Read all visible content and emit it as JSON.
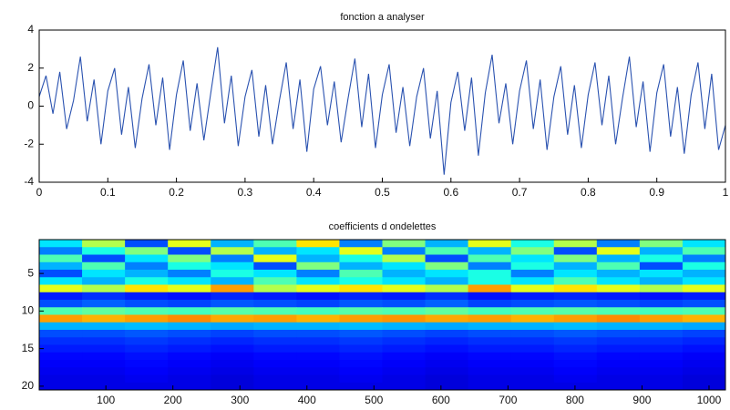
{
  "chart_data": [
    {
      "type": "line",
      "title": "fonction a analyser",
      "color": "#2a52b0",
      "x": [
        0,
        0.01,
        0.02,
        0.03,
        0.04,
        0.05,
        0.06,
        0.07,
        0.08,
        0.09,
        0.1,
        0.11,
        0.12,
        0.13,
        0.14,
        0.15,
        0.16,
        0.17,
        0.18,
        0.19,
        0.2,
        0.21,
        0.22,
        0.23,
        0.24,
        0.25,
        0.26,
        0.27,
        0.28,
        0.29,
        0.3,
        0.31,
        0.32,
        0.33,
        0.34,
        0.35,
        0.36,
        0.37,
        0.38,
        0.39,
        0.4,
        0.41,
        0.42,
        0.43,
        0.44,
        0.45,
        0.46,
        0.47,
        0.48,
        0.49,
        0.5,
        0.51,
        0.52,
        0.53,
        0.54,
        0.55,
        0.56,
        0.57,
        0.58,
        0.59,
        0.6,
        0.61,
        0.62,
        0.63,
        0.64,
        0.65,
        0.66,
        0.67,
        0.68,
        0.69,
        0.7,
        0.71,
        0.72,
        0.73,
        0.74,
        0.75,
        0.76,
        0.77,
        0.78,
        0.79,
        0.8,
        0.81,
        0.82,
        0.83,
        0.84,
        0.85,
        0.86,
        0.87,
        0.88,
        0.89,
        0.9,
        0.91,
        0.92,
        0.93,
        0.94,
        0.95,
        0.96,
        0.97,
        0.98,
        0.99,
        1
      ],
      "values": [
        0.5,
        1.6,
        -0.4,
        1.8,
        -1.2,
        0.3,
        2.6,
        -0.8,
        1.4,
        -2.0,
        0.8,
        2.0,
        -1.5,
        1.0,
        -2.2,
        0.4,
        2.2,
        -1.0,
        1.5,
        -2.3,
        0.6,
        2.4,
        -1.3,
        1.2,
        -1.8,
        0.7,
        3.1,
        -0.9,
        1.6,
        -2.1,
        0.5,
        1.9,
        -1.6,
        1.1,
        -2.0,
        0.3,
        2.3,
        -1.2,
        1.4,
        -2.4,
        0.9,
        2.1,
        -1.0,
        1.3,
        -1.9,
        0.4,
        2.5,
        -1.1,
        1.7,
        -2.2,
        0.6,
        2.2,
        -1.4,
        1.0,
        -2.1,
        0.5,
        2.0,
        -1.7,
        0.8,
        -3.6,
        0.2,
        1.8,
        -1.3,
        1.5,
        -2.6,
        0.7,
        2.7,
        -0.9,
        1.2,
        -2.0,
        0.8,
        2.4,
        -1.2,
        1.4,
        -2.3,
        0.5,
        2.1,
        -1.5,
        1.1,
        -2.2,
        0.6,
        2.3,
        -1.0,
        1.6,
        -2.0,
        0.4,
        2.6,
        -1.1,
        1.3,
        -2.4,
        0.7,
        2.2,
        -1.6,
        1.0,
        -2.5,
        0.6,
        2.3,
        -1.2,
        1.7,
        -2.3,
        -1.0
      ],
      "xlim": [
        0,
        1
      ],
      "xticks": [
        0,
        0.1,
        0.2,
        0.3,
        0.4,
        0.5,
        0.6,
        0.7,
        0.8,
        0.9,
        1
      ],
      "ylim": [
        -4,
        4
      ],
      "yticks": [
        -4,
        -2,
        0,
        2,
        4
      ]
    },
    {
      "type": "heatmap",
      "title": "coefficients d ondelettes",
      "colormap": "jet",
      "clim": [
        0,
        1
      ],
      "xbins": [
        0.5,
        64.5,
        128.5,
        192.5,
        256.5,
        320.5,
        384.5,
        448.5,
        512.5,
        576.5,
        640.5,
        704.5,
        768.5,
        832.5,
        896.5,
        960.5,
        1024.5
      ],
      "y": [
        1,
        2,
        3,
        4,
        5,
        6,
        7,
        8,
        9,
        10,
        11,
        12,
        13,
        14,
        15,
        16,
        17,
        18,
        19,
        20
      ],
      "values": [
        [
          0.35,
          0.55,
          0.2,
          0.6,
          0.3,
          0.45,
          0.65,
          0.25,
          0.5,
          0.3,
          0.6,
          0.4,
          0.55,
          0.25,
          0.5,
          0.35
        ],
        [
          0.25,
          0.4,
          0.5,
          0.2,
          0.55,
          0.3,
          0.35,
          0.6,
          0.25,
          0.45,
          0.3,
          0.5,
          0.2,
          0.6,
          0.3,
          0.45
        ],
        [
          0.45,
          0.2,
          0.35,
          0.5,
          0.25,
          0.6,
          0.3,
          0.4,
          0.55,
          0.2,
          0.45,
          0.35,
          0.5,
          0.3,
          0.4,
          0.25
        ],
        [
          0.3,
          0.45,
          0.25,
          0.4,
          0.35,
          0.2,
          0.5,
          0.3,
          0.35,
          0.5,
          0.25,
          0.4,
          0.3,
          0.45,
          0.2,
          0.4
        ],
        [
          0.2,
          0.35,
          0.3,
          0.25,
          0.4,
          0.35,
          0.25,
          0.45,
          0.3,
          0.35,
          0.4,
          0.25,
          0.35,
          0.3,
          0.35,
          0.3
        ],
        [
          0.35,
          0.3,
          0.4,
          0.35,
          0.3,
          0.45,
          0.35,
          0.4,
          0.35,
          0.3,
          0.4,
          0.35,
          0.45,
          0.35,
          0.3,
          0.35
        ],
        [
          0.6,
          0.55,
          0.65,
          0.6,
          0.72,
          0.55,
          0.6,
          0.65,
          0.6,
          0.55,
          0.72,
          0.6,
          0.65,
          0.6,
          0.55,
          0.6
        ],
        [
          0.15,
          0.17,
          0.15,
          0.14,
          0.16,
          0.15,
          0.14,
          0.16,
          0.15,
          0.17,
          0.14,
          0.15,
          0.16,
          0.15,
          0.14,
          0.15
        ],
        [
          0.2,
          0.22,
          0.2,
          0.19,
          0.21,
          0.2,
          0.19,
          0.21,
          0.2,
          0.22,
          0.19,
          0.2,
          0.21,
          0.2,
          0.19,
          0.2
        ],
        [
          0.45,
          0.47,
          0.45,
          0.44,
          0.46,
          0.45,
          0.44,
          0.46,
          0.45,
          0.47,
          0.44,
          0.45,
          0.46,
          0.45,
          0.44,
          0.45
        ],
        [
          0.72,
          0.7,
          0.72,
          0.74,
          0.71,
          0.72,
          0.7,
          0.72,
          0.73,
          0.71,
          0.72,
          0.7,
          0.72,
          0.74,
          0.72,
          0.7
        ],
        [
          0.3,
          0.3,
          0.31,
          0.3,
          0.29,
          0.3,
          0.3,
          0.31,
          0.3,
          0.29,
          0.3,
          0.3,
          0.31,
          0.3,
          0.3,
          0.29
        ],
        [
          0.2,
          0.2,
          0.21,
          0.2,
          0.19,
          0.2,
          0.2,
          0.21,
          0.2,
          0.19,
          0.2,
          0.2,
          0.21,
          0.2,
          0.2,
          0.19
        ],
        [
          0.17,
          0.17,
          0.18,
          0.17,
          0.16,
          0.17,
          0.17,
          0.18,
          0.17,
          0.16,
          0.17,
          0.17,
          0.18,
          0.17,
          0.17,
          0.16
        ],
        [
          0.15,
          0.15,
          0.16,
          0.15,
          0.14,
          0.15,
          0.15,
          0.16,
          0.15,
          0.14,
          0.15,
          0.15,
          0.16,
          0.15,
          0.15,
          0.14
        ],
        [
          0.13,
          0.13,
          0.14,
          0.13,
          0.12,
          0.13,
          0.13,
          0.14,
          0.13,
          0.12,
          0.13,
          0.13,
          0.14,
          0.13,
          0.13,
          0.12
        ],
        [
          0.12,
          0.12,
          0.13,
          0.12,
          0.11,
          0.12,
          0.12,
          0.13,
          0.12,
          0.11,
          0.12,
          0.12,
          0.13,
          0.12,
          0.12,
          0.11
        ],
        [
          0.11,
          0.11,
          0.12,
          0.11,
          0.1,
          0.11,
          0.11,
          0.12,
          0.11,
          0.1,
          0.11,
          0.11,
          0.12,
          0.11,
          0.11,
          0.1
        ],
        [
          0.1,
          0.1,
          0.11,
          0.1,
          0.09,
          0.1,
          0.1,
          0.11,
          0.1,
          0.09,
          0.1,
          0.1,
          0.11,
          0.1,
          0.1,
          0.09
        ],
        [
          0.1,
          0.1,
          0.1,
          0.1,
          0.09,
          0.1,
          0.1,
          0.1,
          0.1,
          0.09,
          0.1,
          0.1,
          0.1,
          0.1,
          0.1,
          0.09
        ]
      ],
      "xlim": [
        0.5,
        1024.5
      ],
      "xticks": [
        100,
        200,
        300,
        400,
        500,
        600,
        700,
        800,
        900,
        1000
      ],
      "ylim": [
        20.5,
        0.5
      ],
      "yticks": [
        5,
        10,
        15,
        20
      ]
    }
  ]
}
